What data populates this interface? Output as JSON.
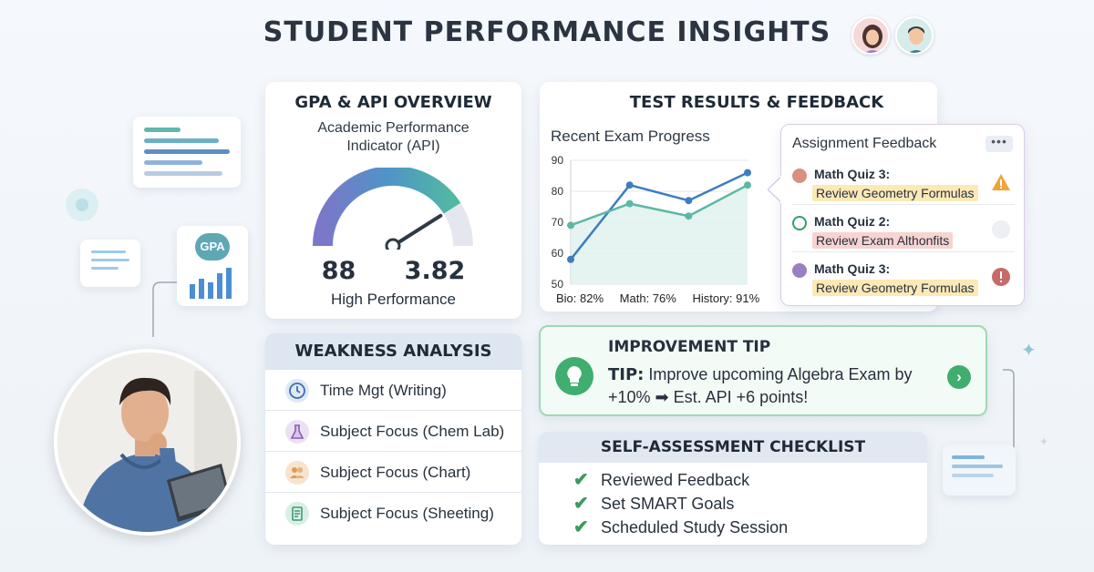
{
  "header": {
    "title": "STUDENT PERFORMANCE INSIGHTS"
  },
  "gpa_card": {
    "title": "GPA & API OVERVIEW",
    "subtitle_line1": "Academic Performance",
    "subtitle_line2": "Indicator (API)",
    "api_value": "88",
    "gpa_value": "3.82",
    "status": "High Performance",
    "gauge_fraction": 0.82
  },
  "side_badge": {
    "label": "GPA"
  },
  "test_card": {
    "title": "TEST RESULTS & FEEDBACK",
    "chart_title": "Recent Exam Progress",
    "footer": [
      "Bio: 82%",
      "Math: 76%",
      "History: 91%"
    ]
  },
  "chart_data": {
    "type": "line",
    "title": "Recent Exam Progress",
    "ylim": [
      50,
      90
    ],
    "yticks": [
      90,
      80,
      70,
      60,
      50
    ],
    "x": [
      1,
      2,
      3,
      4
    ],
    "series": [
      {
        "name": "",
        "values": [
          58,
          82,
          77,
          86
        ],
        "color": "#3e7dbf"
      },
      {
        "name": "",
        "values": [
          69,
          76,
          72,
          82
        ],
        "color": "#5cb8a4"
      }
    ],
    "grid": true
  },
  "feedback": {
    "title": "Assignment Feedback",
    "menu_label": "•••",
    "items": [
      {
        "name": "Math Quiz 3:",
        "note": "Review Geometry Formulas",
        "dot_color": "#d89080",
        "tag_color": "#fde9b6",
        "icon": "warning-icon"
      },
      {
        "name": "Math Quiz 2:",
        "note": "Review Exam Althonfits",
        "dot_color": "#ffffff",
        "tag_color": "#f8d3cf",
        "icon": "pending-icon"
      },
      {
        "name": "Math Quiz 3:",
        "note": "Review Geometry Formulas",
        "dot_color": "#9b7ec4",
        "tag_color": "#fde9b6",
        "icon": "alert-icon"
      }
    ]
  },
  "weakness": {
    "title": "WEAKNESS ANALYSIS",
    "items": [
      {
        "label": "Time Mgt (Writing)",
        "icon": "clock-icon",
        "bg": "#dfe8f5"
      },
      {
        "label": "Subject Focus (Chem Lab)",
        "icon": "flask-icon",
        "bg": "#ece1f3"
      },
      {
        "label": "Subject Focus (Chart)",
        "icon": "people-icon",
        "bg": "#f8e3cf"
      },
      {
        "label": "Subject Focus (Sheeting)",
        "icon": "document-icon",
        "bg": "#d9efe6"
      }
    ]
  },
  "tip": {
    "title": "IMPROVEMENT TIP",
    "prefix": "TIP:",
    "text": "Improve upcoming Algebra Exam by +10% ➡ Est. API +6 points!",
    "next_label": "›"
  },
  "checklist": {
    "title": "SELF-ASSESSMENT CHECKLIST",
    "items": [
      "Reviewed Feedback",
      "Set SMART Goals",
      "Scheduled Study Session"
    ]
  }
}
